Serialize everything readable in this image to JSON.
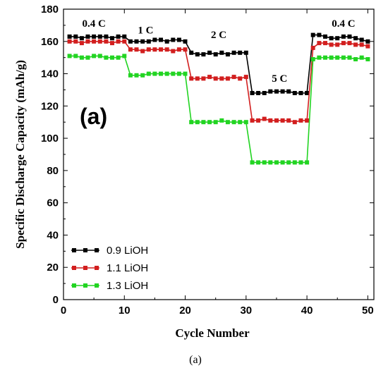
{
  "chart_data": {
    "type": "line",
    "panel_label": "(a)",
    "caption": "(a)",
    "xlabel": "Cycle Number",
    "ylabel": "Specific Discharge Capacity (mAh/g)",
    "xlim": [
      0,
      51
    ],
    "ylim": [
      0,
      180
    ],
    "xticks": [
      0,
      10,
      20,
      30,
      40,
      50
    ],
    "yticks": [
      0,
      20,
      40,
      60,
      80,
      100,
      120,
      140,
      160,
      180
    ],
    "grid": false,
    "legend_position": "bottom-left",
    "rate_labels": [
      {
        "text": "0.4 C",
        "x": 5,
        "y": 169
      },
      {
        "text": "1 C",
        "x": 13.5,
        "y": 165
      },
      {
        "text": "2 C",
        "x": 25.5,
        "y": 162
      },
      {
        "text": "5 C",
        "x": 35.5,
        "y": 135
      },
      {
        "text": "0.4 C",
        "x": 46,
        "y": 169
      }
    ],
    "x": [
      1,
      2,
      3,
      4,
      5,
      6,
      7,
      8,
      9,
      10,
      11,
      12,
      13,
      14,
      15,
      16,
      17,
      18,
      19,
      20,
      21,
      22,
      23,
      24,
      25,
      26,
      27,
      28,
      29,
      30,
      31,
      32,
      33,
      34,
      35,
      36,
      37,
      38,
      39,
      40,
      41,
      42,
      43,
      44,
      45,
      46,
      47,
      48,
      49,
      50
    ],
    "series": [
      {
        "name": "0.9 LiOH",
        "color": "#000000",
        "values": [
          163,
          163,
          162,
          163,
          163,
          163,
          163,
          162,
          163,
          163,
          160,
          160,
          160,
          160,
          161,
          161,
          160,
          161,
          161,
          160,
          153,
          152,
          152,
          153,
          152,
          153,
          152,
          153,
          153,
          153,
          128,
          128,
          128,
          129,
          129,
          129,
          129,
          128,
          128,
          128,
          164,
          164,
          163,
          162,
          162,
          163,
          163,
          162,
          161,
          160
        ]
      },
      {
        "name": "1.1 LiOH",
        "color": "#d21f1f",
        "values": [
          160,
          160,
          159,
          160,
          160,
          160,
          160,
          159,
          160,
          160,
          155,
          155,
          154,
          155,
          155,
          155,
          155,
          154,
          155,
          155,
          137,
          137,
          137,
          138,
          137,
          137,
          137,
          138,
          137,
          138,
          111,
          111,
          112,
          111,
          111,
          111,
          111,
          110,
          111,
          111,
          156,
          159,
          159,
          158,
          158,
          159,
          159,
          158,
          158,
          157
        ]
      },
      {
        "name": "1.3 LiOH",
        "color": "#22d422",
        "values": [
          151,
          151,
          150,
          150,
          151,
          151,
          150,
          150,
          150,
          151,
          139,
          139,
          139,
          140,
          140,
          140,
          140,
          140,
          140,
          140,
          110,
          110,
          110,
          110,
          110,
          111,
          110,
          110,
          110,
          110,
          85,
          85,
          85,
          85,
          85,
          85,
          85,
          85,
          85,
          85,
          149,
          150,
          150,
          150,
          150,
          150,
          150,
          149,
          150,
          149
        ]
      }
    ]
  }
}
